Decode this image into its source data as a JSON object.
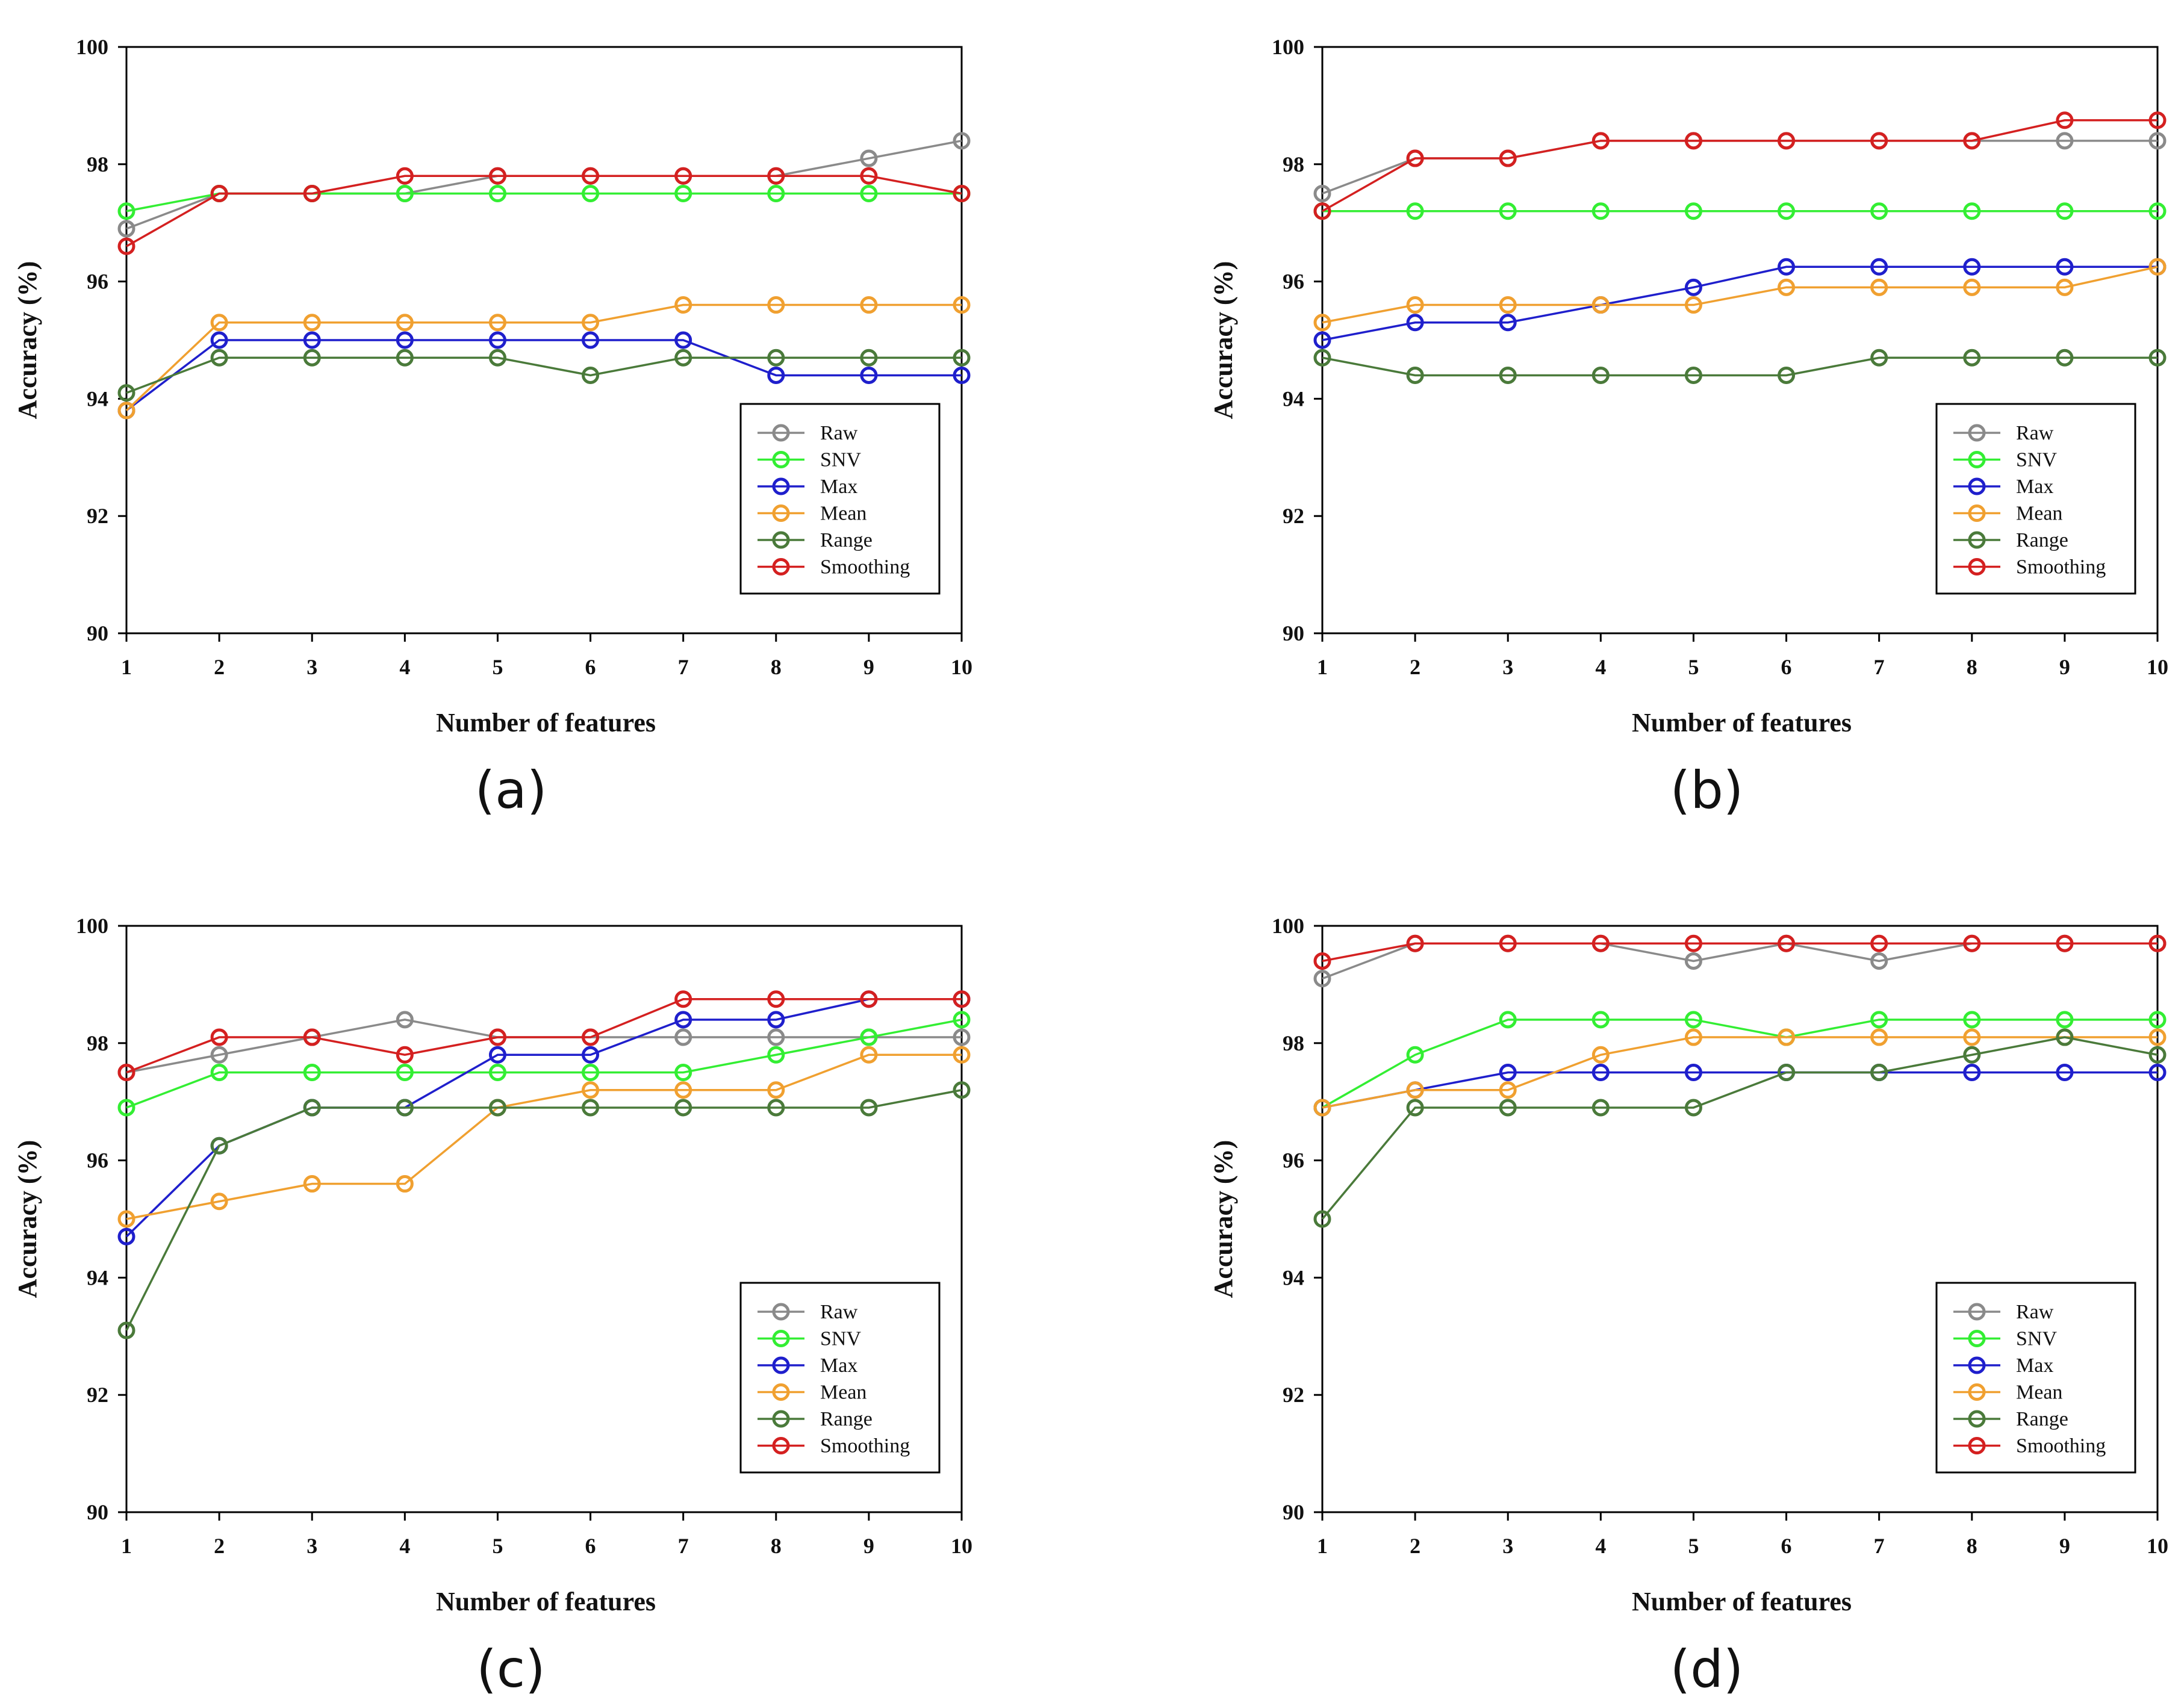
{
  "x_ticks": [
    1,
    2,
    3,
    4,
    5,
    6,
    7,
    8,
    9,
    10
  ],
  "y_ticks": [
    90,
    92,
    94,
    96,
    98,
    100
  ],
  "series_colors": {
    "Raw": "#8a8a8a",
    "SNV": "#33ee33",
    "Max": "#1f1fcc",
    "Mean": "#f0a030",
    "Range": "#4a7a3a",
    "Smoothing": "#d42020"
  },
  "chart_data": [
    {
      "panel": "(a)",
      "type": "line",
      "xlabel": "Number of features",
      "ylabel": "Accuracy (%)",
      "xlim": [
        1,
        10
      ],
      "ylim": [
        90,
        100
      ],
      "x": [
        1,
        2,
        3,
        4,
        5,
        6,
        7,
        8,
        9,
        10
      ],
      "legend_position": "lower-right",
      "series": [
        {
          "name": "Raw",
          "values": [
            96.9,
            97.5,
            97.5,
            97.5,
            97.8,
            97.8,
            97.8,
            97.8,
            98.1,
            98.4
          ]
        },
        {
          "name": "SNV",
          "values": [
            97.2,
            97.5,
            97.5,
            97.5,
            97.5,
            97.5,
            97.5,
            97.5,
            97.5,
            97.5
          ]
        },
        {
          "name": "Max",
          "values": [
            93.8,
            95.0,
            95.0,
            95.0,
            95.0,
            95.0,
            95.0,
            94.4,
            94.4,
            94.4
          ]
        },
        {
          "name": "Mean",
          "values": [
            93.8,
            95.3,
            95.3,
            95.3,
            95.3,
            95.3,
            95.6,
            95.6,
            95.6,
            95.6
          ]
        },
        {
          "name": "Range",
          "values": [
            94.1,
            94.7,
            94.7,
            94.7,
            94.7,
            94.4,
            94.7,
            94.7,
            94.7,
            94.7
          ]
        },
        {
          "name": "Smoothing",
          "values": [
            96.6,
            97.5,
            97.5,
            97.8,
            97.8,
            97.8,
            97.8,
            97.8,
            97.8,
            97.5
          ]
        }
      ]
    },
    {
      "panel": "(b)",
      "type": "line",
      "xlabel": "Number of features",
      "ylabel": "Accuracy (%)",
      "xlim": [
        1,
        10
      ],
      "ylim": [
        90,
        100
      ],
      "x": [
        1,
        2,
        3,
        4,
        5,
        6,
        7,
        8,
        9,
        10
      ],
      "legend_position": "lower-right",
      "series": [
        {
          "name": "Raw",
          "values": [
            97.5,
            98.1,
            98.1,
            98.4,
            98.4,
            98.4,
            98.4,
            98.4,
            98.4,
            98.4
          ]
        },
        {
          "name": "SNV",
          "values": [
            97.2,
            97.2,
            97.2,
            97.2,
            97.2,
            97.2,
            97.2,
            97.2,
            97.2,
            97.2
          ]
        },
        {
          "name": "Max",
          "values": [
            95.0,
            95.3,
            95.3,
            95.6,
            95.9,
            96.25,
            96.25,
            96.25,
            96.25,
            96.25
          ]
        },
        {
          "name": "Mean",
          "values": [
            95.3,
            95.6,
            95.6,
            95.6,
            95.6,
            95.9,
            95.9,
            95.9,
            95.9,
            96.25
          ]
        },
        {
          "name": "Range",
          "values": [
            94.7,
            94.4,
            94.4,
            94.4,
            94.4,
            94.4,
            94.7,
            94.7,
            94.7,
            94.7
          ]
        },
        {
          "name": "Smoothing",
          "values": [
            97.2,
            98.1,
            98.1,
            98.4,
            98.4,
            98.4,
            98.4,
            98.4,
            98.75,
            98.75
          ]
        }
      ]
    },
    {
      "panel": "(c)",
      "type": "line",
      "xlabel": "Number of features",
      "ylabel": "Accuracy (%)",
      "xlim": [
        1,
        10
      ],
      "ylim": [
        90,
        100
      ],
      "x": [
        1,
        2,
        3,
        4,
        5,
        6,
        7,
        8,
        9,
        10
      ],
      "legend_position": "lower-right",
      "series": [
        {
          "name": "Raw",
          "values": [
            97.5,
            97.8,
            98.1,
            98.4,
            98.1,
            98.1,
            98.1,
            98.1,
            98.1,
            98.1
          ]
        },
        {
          "name": "SNV",
          "values": [
            96.9,
            97.5,
            97.5,
            97.5,
            97.5,
            97.5,
            97.5,
            97.8,
            98.1,
            98.4
          ]
        },
        {
          "name": "Max",
          "values": [
            94.7,
            96.25,
            96.9,
            96.9,
            97.8,
            97.8,
            98.4,
            98.4,
            98.75,
            98.75
          ]
        },
        {
          "name": "Mean",
          "values": [
            95.0,
            95.3,
            95.6,
            95.6,
            96.9,
            97.2,
            97.2,
            97.2,
            97.8,
            97.8
          ]
        },
        {
          "name": "Range",
          "values": [
            93.1,
            96.25,
            96.9,
            96.9,
            96.9,
            96.9,
            96.9,
            96.9,
            96.9,
            97.2
          ]
        },
        {
          "name": "Smoothing",
          "values": [
            97.5,
            98.1,
            98.1,
            97.8,
            98.1,
            98.1,
            98.75,
            98.75,
            98.75,
            98.75
          ]
        }
      ]
    },
    {
      "panel": "(d)",
      "type": "line",
      "xlabel": "Number of features",
      "ylabel": "Accuracy (%)",
      "xlim": [
        1,
        10
      ],
      "ylim": [
        90,
        100
      ],
      "x": [
        1,
        2,
        3,
        4,
        5,
        6,
        7,
        8,
        9,
        10
      ],
      "legend_position": "lower-right",
      "series": [
        {
          "name": "Raw",
          "values": [
            99.1,
            99.7,
            99.7,
            99.7,
            99.4,
            99.7,
            99.4,
            99.7,
            99.7,
            99.7
          ]
        },
        {
          "name": "SNV",
          "values": [
            96.9,
            97.8,
            98.4,
            98.4,
            98.4,
            98.1,
            98.4,
            98.4,
            98.4,
            98.4
          ]
        },
        {
          "name": "Max",
          "values": [
            96.9,
            97.2,
            97.5,
            97.5,
            97.5,
            97.5,
            97.5,
            97.5,
            97.5,
            97.5
          ]
        },
        {
          "name": "Mean",
          "values": [
            96.9,
            97.2,
            97.2,
            97.8,
            98.1,
            98.1,
            98.1,
            98.1,
            98.1,
            98.1
          ]
        },
        {
          "name": "Range",
          "values": [
            95.0,
            96.9,
            96.9,
            96.9,
            96.9,
            97.5,
            97.5,
            97.8,
            98.1,
            97.8
          ]
        },
        {
          "name": "Smoothing",
          "values": [
            99.4,
            99.7,
            99.7,
            99.7,
            99.7,
            99.7,
            99.7,
            99.7,
            99.7,
            99.7
          ]
        }
      ]
    }
  ]
}
